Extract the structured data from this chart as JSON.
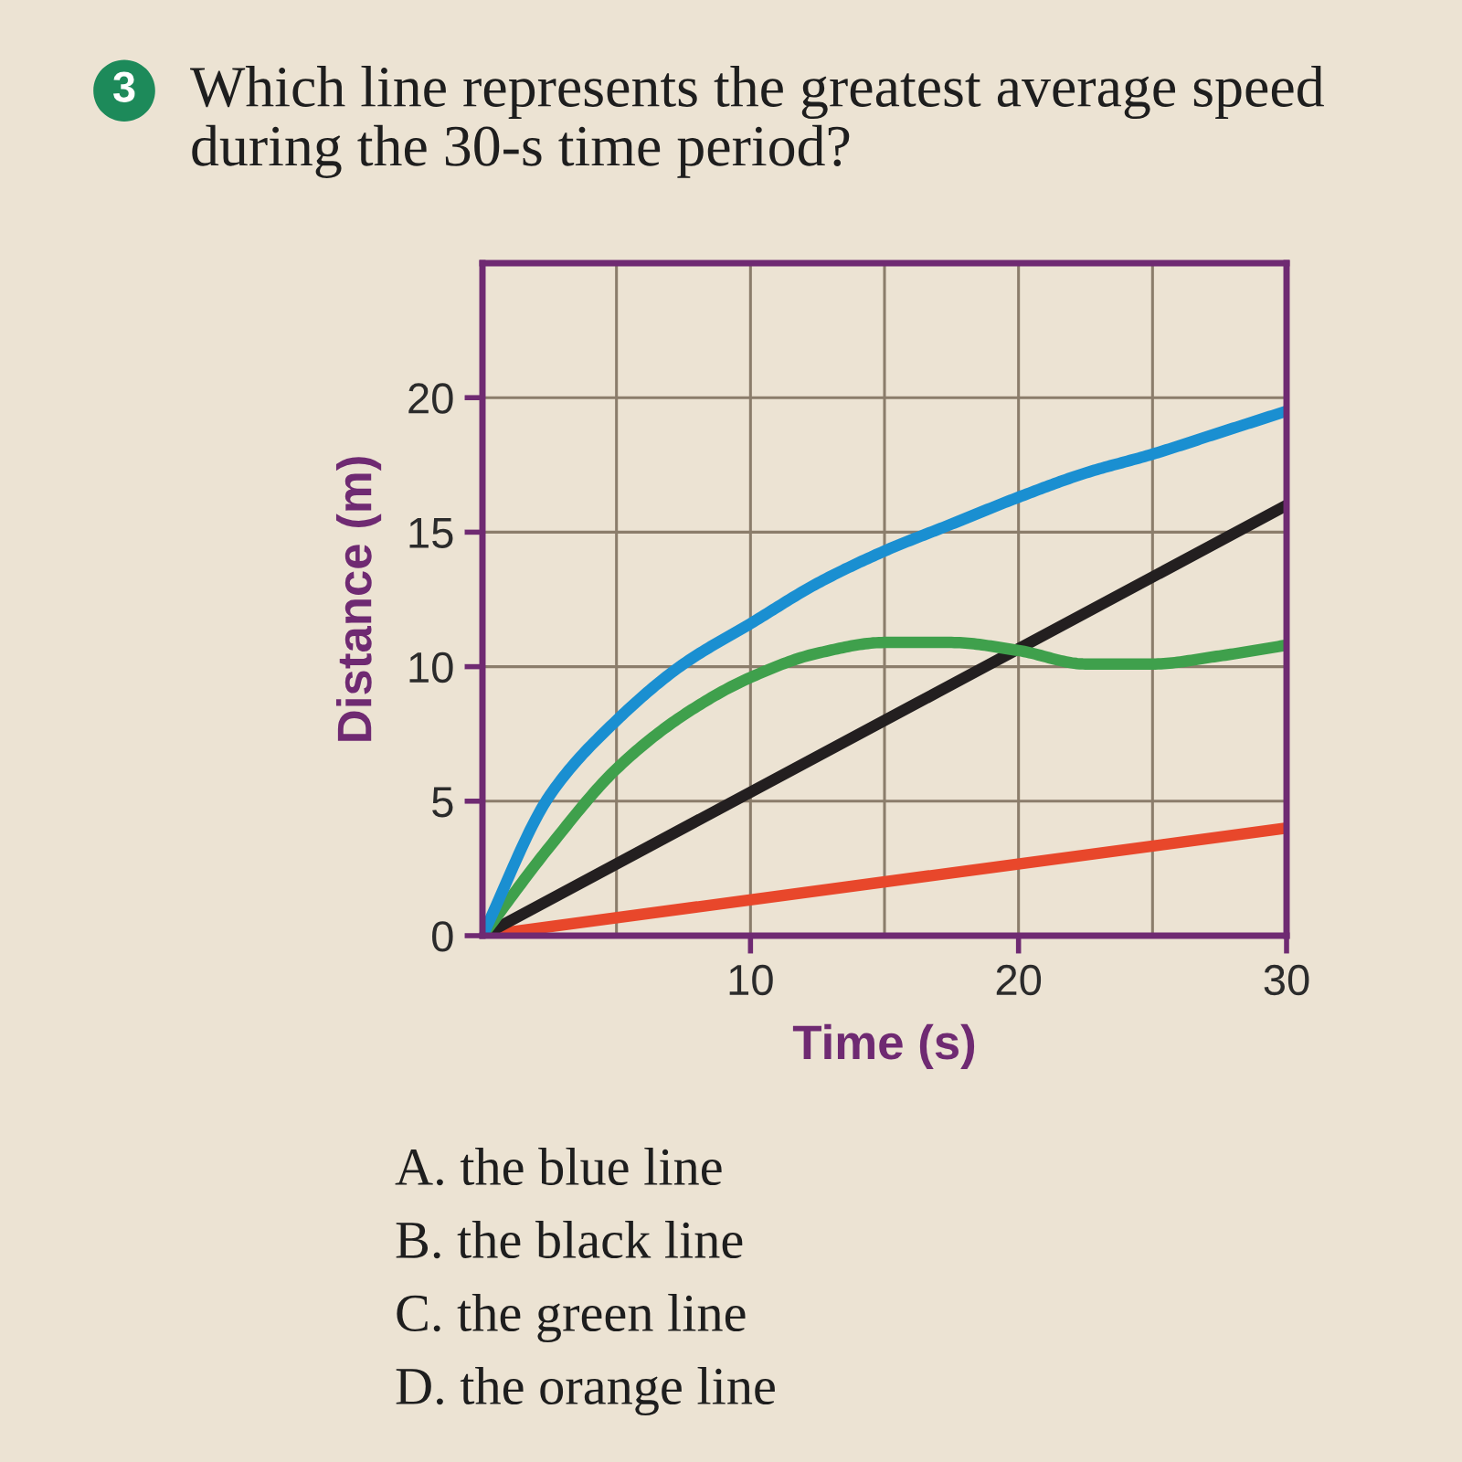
{
  "chart_data": {
    "type": "line",
    "title": "Which line represents the greatest average speed during the 30-s time period?",
    "xlabel": "Time (s)",
    "ylabel": "Distance (m)",
    "series": [
      {
        "color": "#e8472b",
        "x": [
          0,
          30
        ],
        "values": [
          0,
          4
        ]
      },
      {
        "color": "#231f20",
        "x": [
          0,
          30
        ],
        "values": [
          0,
          16
        ]
      },
      {
        "color": "#3fa04c",
        "x": [
          0,
          2.5,
          5,
          7.5,
          10,
          12.5,
          15,
          17.5,
          20,
          22.5,
          25,
          27.5,
          30
        ],
        "values": [
          0,
          3.3,
          6.2,
          8.2,
          9.6,
          10.5,
          10.9,
          10.9,
          10.6,
          10.1,
          10.1,
          10.4,
          10.8
        ]
      },
      {
        "color": "#1a8fd1",
        "x": [
          0,
          2.5,
          5,
          7.5,
          10,
          12.5,
          15,
          17.5,
          20,
          22.5,
          25,
          27.5,
          30
        ],
        "values": [
          0,
          5.2,
          8,
          10.1,
          11.6,
          13.1,
          14.3,
          15.3,
          16.3,
          17.2,
          17.9,
          18.7,
          19.5
        ]
      }
    ],
    "xlim": [
      0,
      30
    ],
    "ylim": [
      0,
      25
    ],
    "xticks": [
      {
        "value": 0,
        "label": null
      },
      {
        "value": 5,
        "label": null
      },
      10,
      {
        "value": 15,
        "label": null
      },
      20,
      {
        "value": 25,
        "label": null
      },
      30
    ],
    "yticks": [
      0,
      5,
      10,
      15,
      20
    ],
    "grid": true,
    "annotations": [
      "3",
      "A. the blue line",
      "B. the black line",
      "C. the green line",
      "D. the orange line"
    ]
  }
}
